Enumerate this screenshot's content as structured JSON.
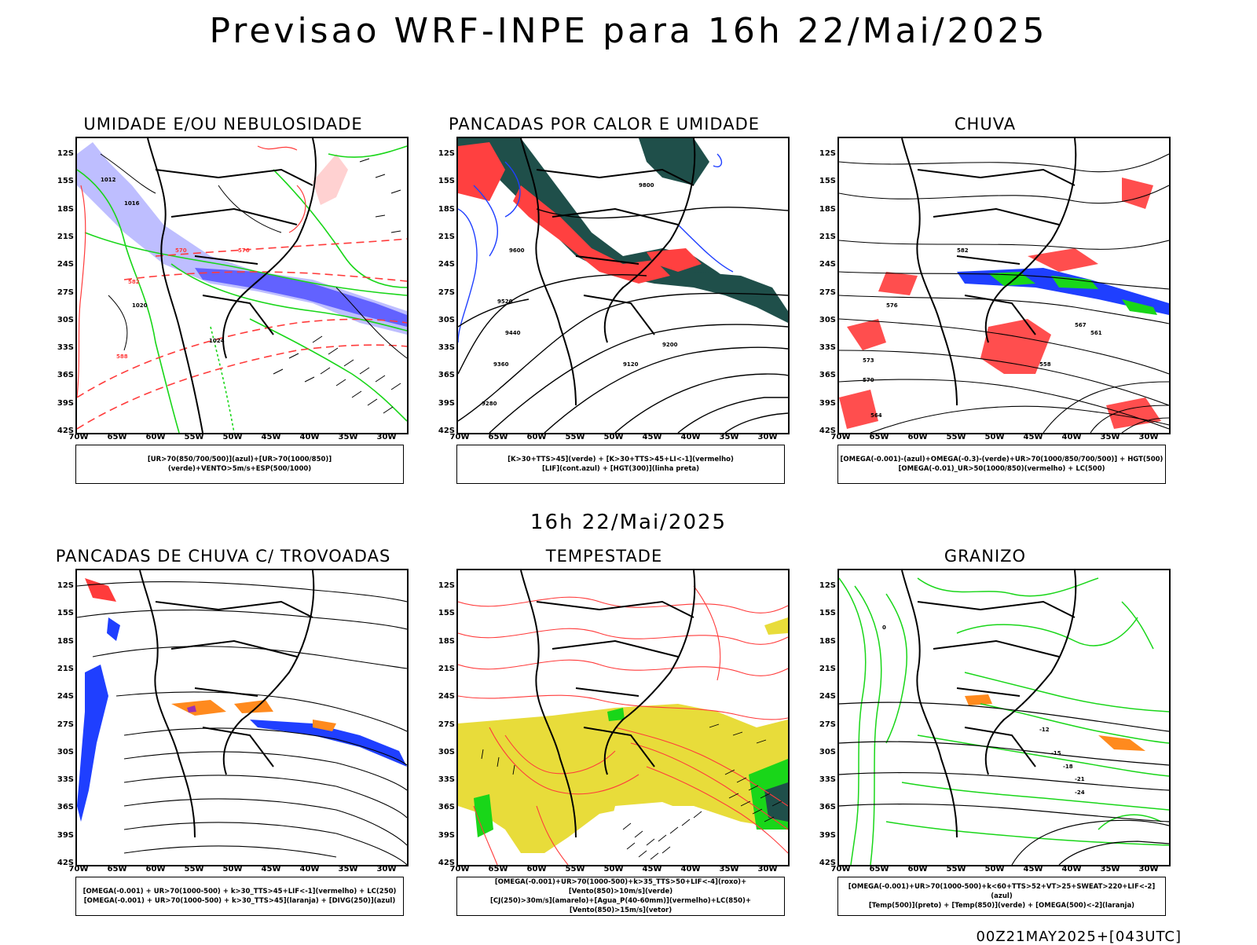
{
  "main_title": "Previsao WRF-INPE  para 16h 22/Mai/2025",
  "mid_title": "16h 22/Mai/2025",
  "footer_stamp": "00Z21MAY2025+[043UTC]",
  "axes": {
    "lat_labels": [
      "12S",
      "15S",
      "18S",
      "21S",
      "24S",
      "27S",
      "30S",
      "33S",
      "36S",
      "39S",
      "42S"
    ],
    "lon_labels": [
      "70W",
      "65W",
      "60W",
      "55W",
      "50W",
      "45W",
      "40W",
      "35W",
      "30W"
    ]
  },
  "colors": {
    "blue": "#1f3fff",
    "green": "#19d619",
    "red": "#ff3b3b",
    "dark_teal": "#1f4f4a",
    "lavender": "#b3b3ff",
    "yellow": "#e8dc3a",
    "orange": "#ff8a1e",
    "purple": "#9e2fb0"
  },
  "panels": [
    {
      "title": "UMIDADE E/OU NEBULOSIDADE",
      "legend": [
        "[UR>70(850/700/500)](azul)+[UR>70(1000/850)](verde)+VENTO>5m/s+ESP(500/1000)"
      ]
    },
    {
      "title": "PANCADAS POR CALOR E UMIDADE",
      "legend": [
        "[K>30+TTS>45](verde) + [K>30+TTS>45+LI<-1](vermelho)",
        "[LIF](cont.azul) + [HGT(300)](linha preta)"
      ]
    },
    {
      "title": "CHUVA",
      "legend": [
        "[OMEGA(-0.001)-(azul)+OMEGA(-0.3)-(verde)+UR>70(1000/850/700/500)] + HGT(500)",
        "[OMEGA(-0.01)_UR>50(1000/850)(vermelho) + LC(500)"
      ]
    },
    {
      "title": "PANCADAS DE CHUVA C/ TROVOADAS",
      "legend": [
        "[OMEGA(-0.001) + UR>70(1000-500) + k>30_TTS>45+LIF<-1](vermelho) + LC(250)",
        "[OMEGA(-0.001) + UR>70(1000-500) + k>30_TTS>45](laranja) + [DIVG(250)](azul)"
      ]
    },
    {
      "title": "TEMPESTADE",
      "legend": [
        "[OMEGA(-0.001)+UR>70(1000-500)+k>35_TTS>50+LIF<-4](roxo)+[Vento(850)>10m/s](verde)",
        "[CJ(250)>30m/s](amarelo)+[Agua_P(40-60mm)](vermelho)+LC(850)+[Vento(850)>15m/s](vetor)"
      ]
    },
    {
      "title": "GRANIZO",
      "legend": [
        "[OMEGA(-0.001)+UR>70(1000-500)+k<60+TTS>52+VT>25+SWEAT>220+LIF<-2](azul)",
        "[Temp(500)](preto) + [Temp(850)](verde) + [OMEGA(500)<-2](laranja)"
      ]
    }
  ],
  "contour_labels": {
    "p1": [
      "1012",
      "1016",
      "1020",
      "1024",
      "570",
      "576",
      "582",
      "588"
    ],
    "p2": [
      "9600",
      "9520",
      "9440",
      "9360",
      "9280",
      "9200",
      "9120",
      "9800"
    ],
    "p3": [
      "582",
      "576",
      "570",
      "564",
      "558",
      "573",
      "567",
      "561"
    ],
    "p6": [
      "0",
      "-12",
      "-15",
      "-18",
      "-21",
      "-24"
    ]
  }
}
